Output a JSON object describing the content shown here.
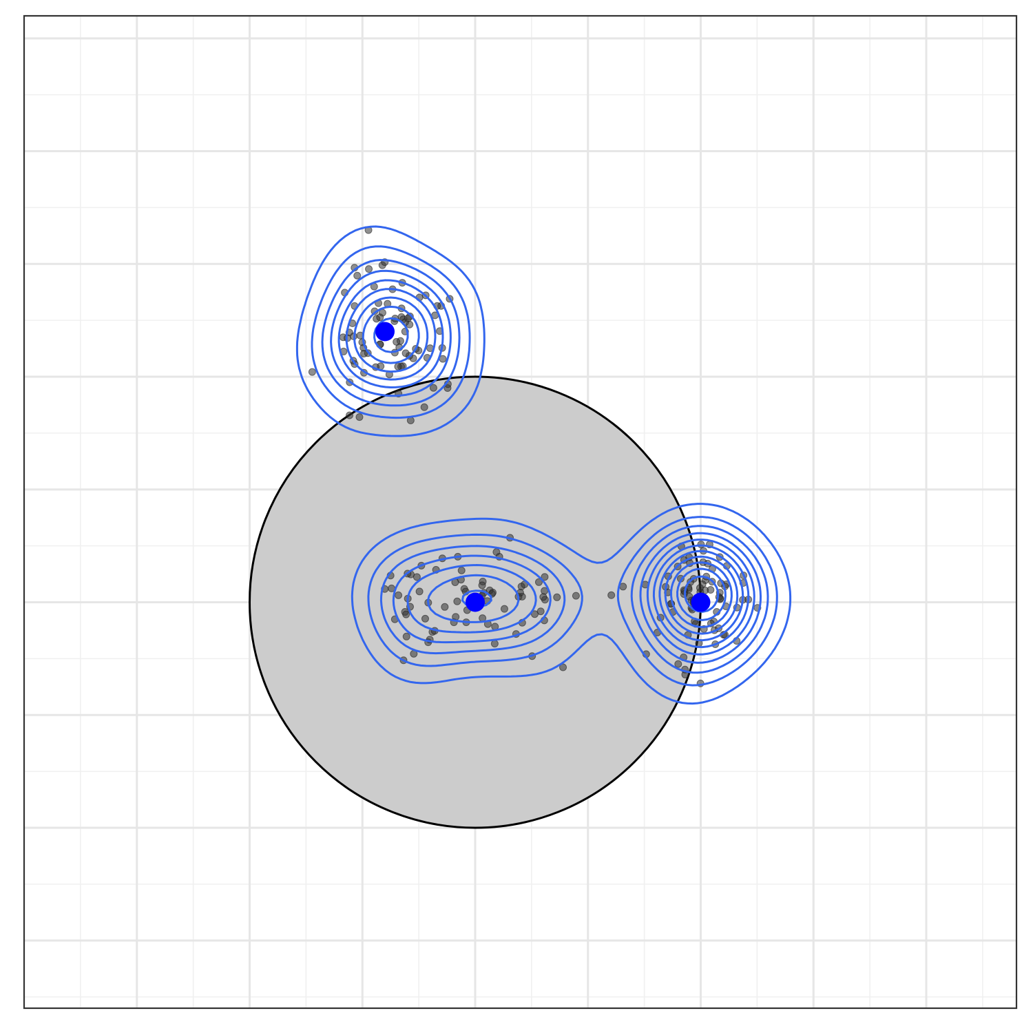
{
  "chart_data": {
    "type": "scatter",
    "title": "",
    "xlabel": "",
    "ylabel": "",
    "xlim": [
      -2.0,
      2.4
    ],
    "ylim": [
      -1.8,
      2.6
    ],
    "grid": true,
    "axis_ticks_shown": false,
    "legend": "none",
    "colors": {
      "contour": "#3366ee",
      "center": "#0000ff",
      "points": "#333333",
      "circle_fill": "#cccccc",
      "circle_stroke": "#000000",
      "grid_major": "#e6e6e6",
      "grid_minor": "#f0f0f0",
      "panel_border": "#333333"
    },
    "circle": {
      "center": [
        0.0,
        0.0
      ],
      "radius": 1.0
    },
    "clusters": [
      {
        "name": "",
        "center": [
          -0.4,
          1.2
        ]
      },
      {
        "name": "",
        "center": [
          0.0,
          0.0
        ]
      },
      {
        "name": "",
        "center": [
          1.0,
          0.0
        ]
      }
    ]
  }
}
